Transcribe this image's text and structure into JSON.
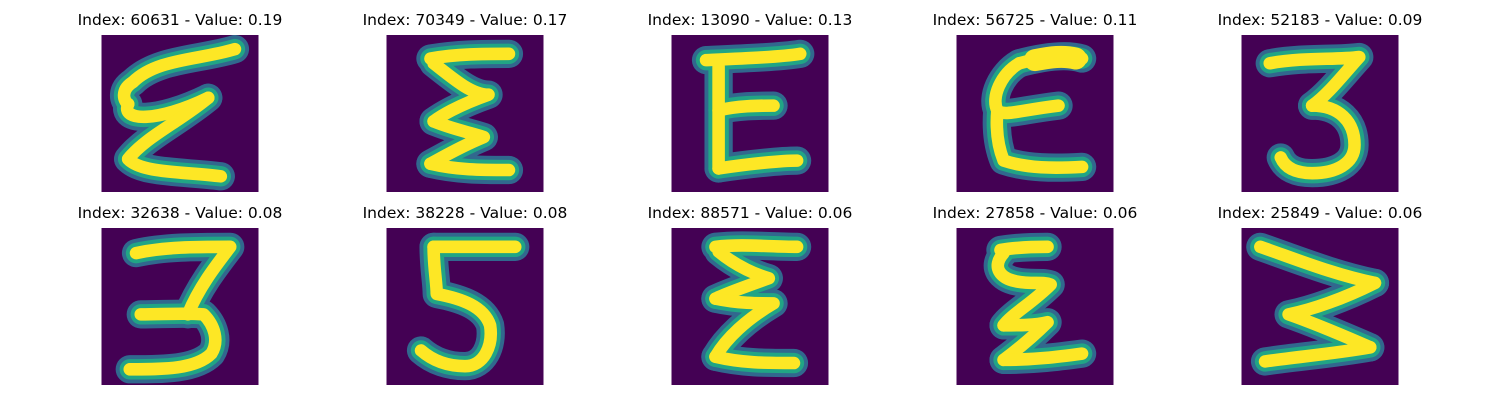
{
  "colors": {
    "background": "#440154",
    "outer_edge": "#31688e",
    "inner_edge": "#21a585",
    "stroke_core": "#fde725",
    "stroke_mid": "#b5de2b"
  },
  "panels": [
    {
      "index": "60631",
      "value": "0.19",
      "title": "Index: 60631 - Value: 0.19"
    },
    {
      "index": "70349",
      "value": "0.17",
      "title": "Index: 70349 - Value: 0.17"
    },
    {
      "index": "13090",
      "value": "0.13",
      "title": "Index: 13090 - Value: 0.13"
    },
    {
      "index": "56725",
      "value": "0.11",
      "title": "Index: 56725 - Value: 0.11"
    },
    {
      "index": "52183",
      "value": "0.09",
      "title": "Index: 52183 - Value: 0.09"
    },
    {
      "index": "32638",
      "value": "0.08",
      "title": "Index: 32638 - Value: 0.08"
    },
    {
      "index": "38228",
      "value": "0.08",
      "title": "Index: 38228 - Value: 0.08"
    },
    {
      "index": "88571",
      "value": "0.06",
      "title": "Index: 88571 - Value: 0.06"
    },
    {
      "index": "27858",
      "value": "0.06",
      "title": "Index: 27858 - Value: 0.06"
    },
    {
      "index": "25849",
      "value": "0.06",
      "title": "Index: 25849 - Value: 0.06"
    }
  ]
}
